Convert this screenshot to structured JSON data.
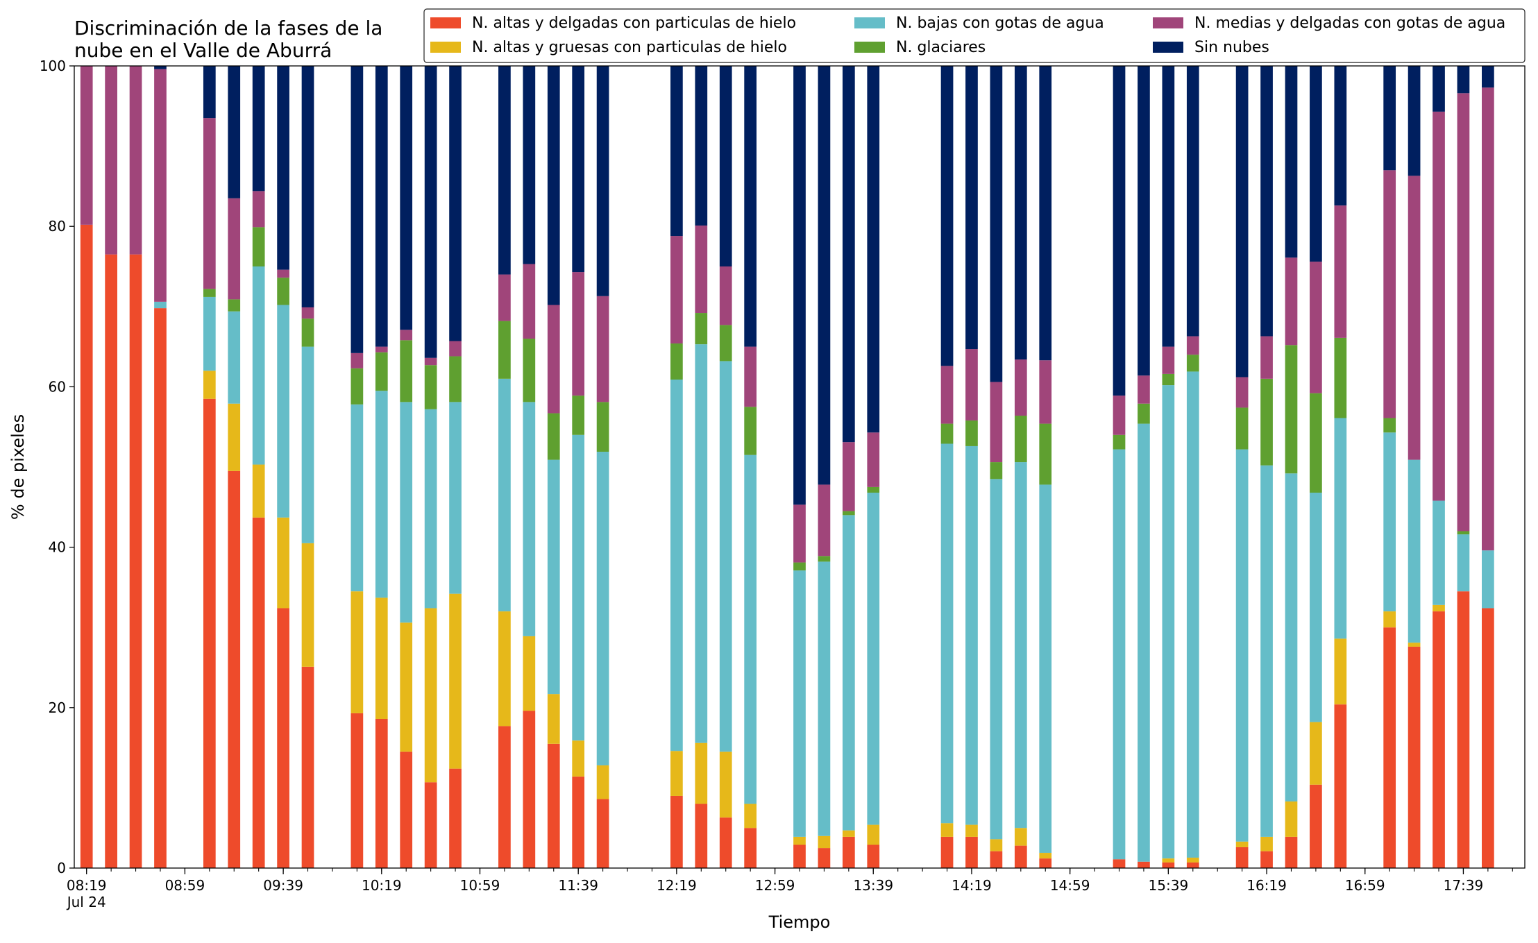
{
  "chart_data": {
    "type": "bar",
    "stacked": true,
    "title": "Discriminación de la fases de la\nnube en el Valle de Aburrá",
    "xlabel": "Tiempo",
    "ylabel": "% de pixeles",
    "ylim": [
      0,
      100
    ],
    "yticks": [
      0,
      20,
      40,
      60,
      80,
      100
    ],
    "xlim": [
      "08:14",
      "18:04"
    ],
    "xtick_labels": [
      "08:19\nJul 24",
      "08:59",
      "09:39",
      "10:19",
      "10:59",
      "11:39",
      "12:19",
      "12:59",
      "13:39",
      "14:19",
      "14:59",
      "15:39",
      "16:19",
      "16:59",
      "17:39"
    ],
    "minor_ticks_every_minutes": 10,
    "bar_width_minutes": 5,
    "grid": false,
    "legend_position": "top-right",
    "series": [
      {
        "name": "N. altas y delgadas con particulas de hielo",
        "color": "#ee4b2b"
      },
      {
        "name": "N. altas y gruesas con particulas de hielo",
        "color": "#e6b81a"
      },
      {
        "name": "N. bajas con gotas de agua",
        "color": "#65bdc8"
      },
      {
        "name": "N. glaciares",
        "color": "#5fa030"
      },
      {
        "name": "N. medias y delgadas con gotas de agua",
        "color": "#a0457a"
      },
      {
        "name": "Sin nubes",
        "color": "#001f5f"
      }
    ],
    "bars": [
      {
        "time": "08:19",
        "values": [
          80.2,
          0,
          0,
          0,
          19.8,
          0
        ]
      },
      {
        "time": "08:29",
        "values": [
          76.5,
          0,
          0,
          0,
          23.5,
          0
        ]
      },
      {
        "time": "08:39",
        "values": [
          76.5,
          0,
          0,
          0,
          23.5,
          0
        ]
      },
      {
        "time": "08:49",
        "values": [
          69.8,
          0,
          0.8,
          0,
          29.0,
          0.4
        ]
      },
      {
        "time": "09:09",
        "values": [
          58.5,
          3.5,
          9.2,
          1.0,
          21.3,
          6.5
        ]
      },
      {
        "time": "09:19",
        "values": [
          49.5,
          8.4,
          11.5,
          1.5,
          12.6,
          16.5
        ]
      },
      {
        "time": "09:29",
        "values": [
          43.7,
          6.6,
          24.7,
          4.9,
          4.5,
          15.6
        ]
      },
      {
        "time": "09:39",
        "values": [
          32.4,
          11.3,
          26.5,
          3.4,
          1.0,
          25.4
        ]
      },
      {
        "time": "09:49",
        "values": [
          25.1,
          15.4,
          24.5,
          3.5,
          1.4,
          30.1
        ]
      },
      {
        "time": "10:09",
        "values": [
          19.3,
          15.2,
          23.3,
          4.5,
          1.9,
          35.8
        ]
      },
      {
        "time": "10:19",
        "values": [
          18.6,
          15.1,
          25.8,
          4.8,
          0.7,
          35.0
        ]
      },
      {
        "time": "10:29",
        "values": [
          14.5,
          16.1,
          27.5,
          7.7,
          1.3,
          32.9
        ]
      },
      {
        "time": "10:39",
        "values": [
          10.7,
          21.7,
          24.8,
          5.5,
          0.9,
          36.4
        ]
      },
      {
        "time": "10:49",
        "values": [
          12.4,
          21.8,
          23.9,
          5.7,
          1.9,
          34.3
        ]
      },
      {
        "time": "11:09",
        "values": [
          17.7,
          14.3,
          29.0,
          7.2,
          5.8,
          26.0
        ]
      },
      {
        "time": "11:19",
        "values": [
          19.6,
          9.3,
          29.2,
          7.9,
          9.3,
          24.7
        ]
      },
      {
        "time": "11:29",
        "values": [
          15.5,
          6.2,
          29.2,
          5.8,
          13.5,
          29.8
        ]
      },
      {
        "time": "11:39",
        "values": [
          11.4,
          4.5,
          38.1,
          4.9,
          15.4,
          25.7
        ]
      },
      {
        "time": "11:49",
        "values": [
          8.6,
          4.2,
          39.1,
          6.2,
          13.2,
          28.7
        ]
      },
      {
        "time": "12:19",
        "values": [
          9.0,
          5.6,
          46.3,
          4.5,
          13.4,
          21.2
        ]
      },
      {
        "time": "12:29",
        "values": [
          8.0,
          7.6,
          49.7,
          3.9,
          10.9,
          19.9
        ]
      },
      {
        "time": "12:39",
        "values": [
          6.3,
          8.2,
          48.7,
          4.5,
          7.3,
          25.0
        ]
      },
      {
        "time": "12:49",
        "values": [
          5.0,
          3.0,
          43.5,
          6.0,
          7.5,
          35.0
        ]
      },
      {
        "time": "13:09",
        "values": [
          2.9,
          1.0,
          33.2,
          1.0,
          7.2,
          54.7
        ]
      },
      {
        "time": "13:19",
        "values": [
          2.5,
          1.5,
          34.2,
          0.7,
          8.9,
          52.2
        ]
      },
      {
        "time": "13:29",
        "values": [
          3.9,
          0.8,
          39.3,
          0.5,
          8.6,
          46.9
        ]
      },
      {
        "time": "13:39",
        "values": [
          2.9,
          2.5,
          41.4,
          0.7,
          6.8,
          45.7
        ]
      },
      {
        "time": "14:09",
        "values": [
          3.9,
          1.7,
          47.3,
          2.5,
          7.2,
          37.4
        ]
      },
      {
        "time": "14:19",
        "values": [
          3.9,
          1.5,
          47.2,
          3.2,
          8.9,
          35.3
        ]
      },
      {
        "time": "14:29",
        "values": [
          2.1,
          1.5,
          44.9,
          2.1,
          10.0,
          39.4
        ]
      },
      {
        "time": "14:39",
        "values": [
          2.8,
          2.2,
          45.6,
          5.8,
          7.0,
          36.6
        ]
      },
      {
        "time": "14:49",
        "values": [
          1.2,
          0.7,
          45.9,
          7.6,
          7.9,
          36.7
        ]
      },
      {
        "time": "15:19",
        "values": [
          1.1,
          0,
          51.1,
          1.8,
          4.9,
          41.1
        ]
      },
      {
        "time": "15:29",
        "values": [
          0.8,
          0,
          54.6,
          2.5,
          3.5,
          38.6
        ]
      },
      {
        "time": "15:39",
        "values": [
          0.7,
          0.5,
          59.0,
          1.4,
          3.4,
          35.0
        ]
      },
      {
        "time": "15:49",
        "values": [
          0.7,
          0.6,
          60.6,
          2.1,
          2.3,
          33.7
        ]
      },
      {
        "time": "16:09",
        "values": [
          2.6,
          0.7,
          48.9,
          5.2,
          3.8,
          38.8
        ]
      },
      {
        "time": "16:19",
        "values": [
          2.1,
          1.8,
          46.3,
          10.8,
          5.3,
          33.7
        ]
      },
      {
        "time": "16:29",
        "values": [
          3.9,
          4.4,
          40.9,
          16.0,
          10.9,
          23.9
        ]
      },
      {
        "time": "16:39",
        "values": [
          10.4,
          7.8,
          28.6,
          12.4,
          16.4,
          24.4
        ]
      },
      {
        "time": "16:49",
        "values": [
          20.4,
          8.2,
          27.5,
          10.0,
          16.5,
          17.4
        ]
      },
      {
        "time": "17:09",
        "values": [
          30.0,
          2.0,
          22.3,
          1.8,
          30.9,
          13.0
        ]
      },
      {
        "time": "17:19",
        "values": [
          27.6,
          0.5,
          22.8,
          0,
          35.4,
          13.7
        ]
      },
      {
        "time": "17:29",
        "values": [
          32.0,
          0.8,
          13.0,
          0,
          48.5,
          5.7
        ]
      },
      {
        "time": "17:39",
        "values": [
          34.5,
          0,
          7.1,
          0.4,
          54.6,
          3.4
        ]
      },
      {
        "time": "17:49",
        "values": [
          32.4,
          0,
          7.2,
          0,
          57.7,
          2.7
        ]
      }
    ]
  }
}
